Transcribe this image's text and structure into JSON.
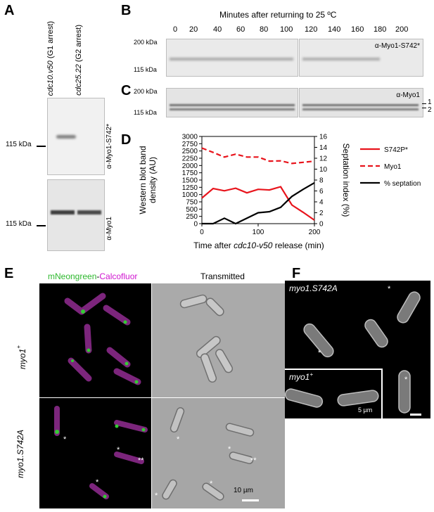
{
  "panels": {
    "a": {
      "label": "A",
      "lanes": [
        {
          "name": "cdc10.v50",
          "note": " (G1 arrest)"
        },
        {
          "name": "cdc25.22",
          "note": " (G2 arrest)"
        }
      ],
      "marker_upper": "115 kDa",
      "marker_lower": "115 kDa",
      "antibody_upper": "α-Myo1-S742*",
      "antibody_lower": "α-Myo1"
    },
    "b": {
      "label": "B",
      "heading": "Minutes after returning to 25 ºC",
      "timepoints": [
        "0",
        "20",
        "40",
        "60",
        "80",
        "100",
        "120",
        "140",
        "160",
        "180",
        "200"
      ],
      "marker_top": "200 kDa",
      "marker_bottom": "115 kDa",
      "antibody": "α-Myo1-S742*"
    },
    "c": {
      "label": "C",
      "marker_top": "200 kDa",
      "marker_bottom": "115 kDa",
      "antibody": "α-Myo1",
      "band_top": "1",
      "band_bottom": "2"
    },
    "d": {
      "label": "D"
    },
    "e": {
      "label": "E",
      "channel_green": "mNeongreen",
      "channel_sep": "-",
      "channel_magenta": "Calcofluor",
      "transmitted": "Transmitted",
      "row_top": "myo1",
      "row_top_sup": "+",
      "row_bottom": "myo1.S742A",
      "scale": "10 µm"
    },
    "f": {
      "label": "F",
      "top_label": "myo1.S742A",
      "inset_label": "myo1",
      "inset_sup": "+",
      "scale": "5 µm"
    }
  },
  "chart_data": {
    "type": "line",
    "xlabel_prefix": "Time after ",
    "xlabel_italic": "cdc10-v50",
    "xlabel_suffix": " release (min)",
    "ylabel_left_line1": "Western blot band",
    "ylabel_left_line2": "density (AU)",
    "ylabel_right": "Septation index (%)",
    "xlim": [
      0,
      200
    ],
    "ylim_left": [
      0,
      3000
    ],
    "ylim_right": [
      0,
      16
    ],
    "xticks": [
      0,
      100,
      200
    ],
    "yticks_left": [
      0,
      250,
      500,
      750,
      1000,
      1250,
      1500,
      1750,
      2000,
      2250,
      2500,
      2750,
      3000
    ],
    "yticks_right": [
      0,
      2,
      4,
      6,
      8,
      10,
      12,
      14,
      16
    ],
    "series": [
      {
        "name": "S742P*",
        "axis": "left",
        "style": "solid",
        "color": "#e8141c",
        "x": [
          0,
          20,
          40,
          60,
          80,
          100,
          120,
          140,
          160,
          180,
          200
        ],
        "y": [
          880,
          1210,
          1130,
          1220,
          1060,
          1180,
          1160,
          1270,
          640,
          390,
          120
        ]
      },
      {
        "name": "Myo1",
        "axis": "left",
        "style": "dashed",
        "color": "#e8141c",
        "x": [
          0,
          20,
          40,
          60,
          80,
          100,
          120,
          140,
          160,
          180,
          200
        ],
        "y": [
          2600,
          2450,
          2290,
          2390,
          2290,
          2290,
          2150,
          2160,
          2070,
          2110,
          2150
        ]
      },
      {
        "name": "% septation",
        "axis": "right",
        "style": "solid",
        "color": "#000000",
        "x": [
          0,
          20,
          40,
          60,
          80,
          100,
          120,
          140,
          160,
          180,
          200
        ],
        "y": [
          0,
          0,
          1,
          0,
          1,
          2,
          2.2,
          3,
          5,
          6.3,
          7.5
        ]
      }
    ]
  }
}
